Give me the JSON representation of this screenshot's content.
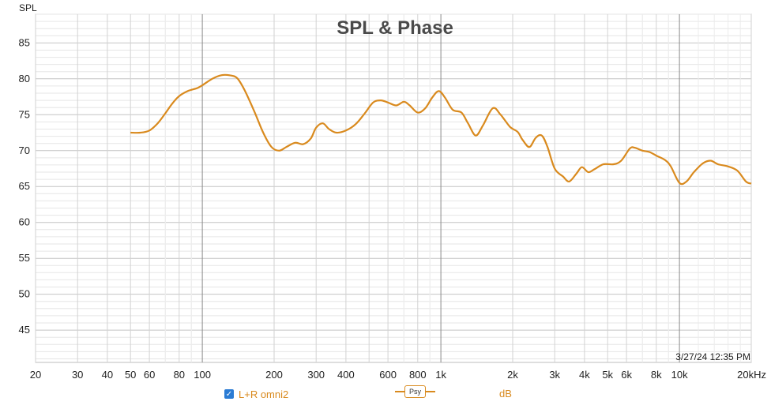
{
  "chart_data": {
    "type": "line",
    "title": "SPL & Phase",
    "ylabel": "SPL",
    "xscale": "log",
    "xlim": [
      20,
      20000
    ],
    "ylim": [
      40.5,
      89
    ],
    "y_ticks": [
      45,
      50,
      55,
      60,
      65,
      70,
      75,
      80,
      85
    ],
    "x_ticks": [
      {
        "value": 20,
        "label": "20"
      },
      {
        "value": 30,
        "label": "30"
      },
      {
        "value": 40,
        "label": "40"
      },
      {
        "value": 50,
        "label": "50"
      },
      {
        "value": 60,
        "label": "60"
      },
      {
        "value": 80,
        "label": "80"
      },
      {
        "value": 100,
        "label": "100"
      },
      {
        "value": 200,
        "label": "200"
      },
      {
        "value": 300,
        "label": "300"
      },
      {
        "value": 400,
        "label": "400"
      },
      {
        "value": 600,
        "label": "600"
      },
      {
        "value": 800,
        "label": "800"
      },
      {
        "value": 1000,
        "label": "1k"
      },
      {
        "value": 2000,
        "label": "2k"
      },
      {
        "value": 3000,
        "label": "3k"
      },
      {
        "value": 4000,
        "label": "4k"
      },
      {
        "value": 5000,
        "label": "5k"
      },
      {
        "value": 6000,
        "label": "6k"
      },
      {
        "value": 8000,
        "label": "8k"
      },
      {
        "value": 10000,
        "label": "10k"
      },
      {
        "value": 20000,
        "label": "20kHz"
      }
    ],
    "grid": true,
    "timestamp": "3/27/24 12:35 PM",
    "series": [
      {
        "name": "L+R omni2",
        "color": "#d98a1e",
        "points": [
          [
            50,
            72.5
          ],
          [
            55,
            72.5
          ],
          [
            60,
            72.8
          ],
          [
            65,
            73.8
          ],
          [
            70,
            75.2
          ],
          [
            75,
            76.6
          ],
          [
            80,
            77.6
          ],
          [
            87,
            78.3
          ],
          [
            95,
            78.7
          ],
          [
            100,
            79.1
          ],
          [
            110,
            80.0
          ],
          [
            120,
            80.5
          ],
          [
            130,
            80.5
          ],
          [
            140,
            80.1
          ],
          [
            150,
            78.5
          ],
          [
            165,
            75.5
          ],
          [
            180,
            72.5
          ],
          [
            195,
            70.5
          ],
          [
            210,
            70.0
          ],
          [
            225,
            70.5
          ],
          [
            245,
            71.1
          ],
          [
            265,
            70.9
          ],
          [
            285,
            71.7
          ],
          [
            300,
            73.2
          ],
          [
            320,
            73.8
          ],
          [
            340,
            73.0
          ],
          [
            365,
            72.5
          ],
          [
            400,
            72.8
          ],
          [
            440,
            73.7
          ],
          [
            480,
            75.2
          ],
          [
            520,
            76.7
          ],
          [
            560,
            77.0
          ],
          [
            600,
            76.7
          ],
          [
            650,
            76.3
          ],
          [
            700,
            76.8
          ],
          [
            740,
            76.3
          ],
          [
            800,
            75.3
          ],
          [
            860,
            75.9
          ],
          [
            920,
            77.4
          ],
          [
            980,
            78.3
          ],
          [
            1040,
            77.4
          ],
          [
            1120,
            75.7
          ],
          [
            1220,
            75.3
          ],
          [
            1300,
            73.8
          ],
          [
            1400,
            72.1
          ],
          [
            1500,
            73.5
          ],
          [
            1650,
            75.9
          ],
          [
            1780,
            75.0
          ],
          [
            1950,
            73.3
          ],
          [
            2100,
            72.6
          ],
          [
            2200,
            71.5
          ],
          [
            2350,
            70.5
          ],
          [
            2500,
            71.8
          ],
          [
            2650,
            72.1
          ],
          [
            2800,
            70.5
          ],
          [
            3000,
            67.5
          ],
          [
            3250,
            66.4
          ],
          [
            3450,
            65.7
          ],
          [
            3700,
            66.8
          ],
          [
            3900,
            67.7
          ],
          [
            4150,
            67.0
          ],
          [
            4400,
            67.4
          ],
          [
            4800,
            68.1
          ],
          [
            5300,
            68.1
          ],
          [
            5700,
            68.6
          ],
          [
            6200,
            70.3
          ],
          [
            6500,
            70.4
          ],
          [
            7000,
            70.0
          ],
          [
            7500,
            69.8
          ],
          [
            8000,
            69.3
          ],
          [
            8700,
            68.7
          ],
          [
            9200,
            67.8
          ],
          [
            10000,
            65.5
          ],
          [
            10700,
            65.7
          ],
          [
            11500,
            67.0
          ],
          [
            12500,
            68.2
          ],
          [
            13500,
            68.6
          ],
          [
            14500,
            68.1
          ],
          [
            16000,
            67.8
          ],
          [
            17500,
            67.2
          ],
          [
            19000,
            65.7
          ],
          [
            20000,
            65.4
          ]
        ]
      }
    ]
  },
  "legend": {
    "series_label": "L+R omni2",
    "smoothing_label": "Psy",
    "unit_label": "dB"
  }
}
